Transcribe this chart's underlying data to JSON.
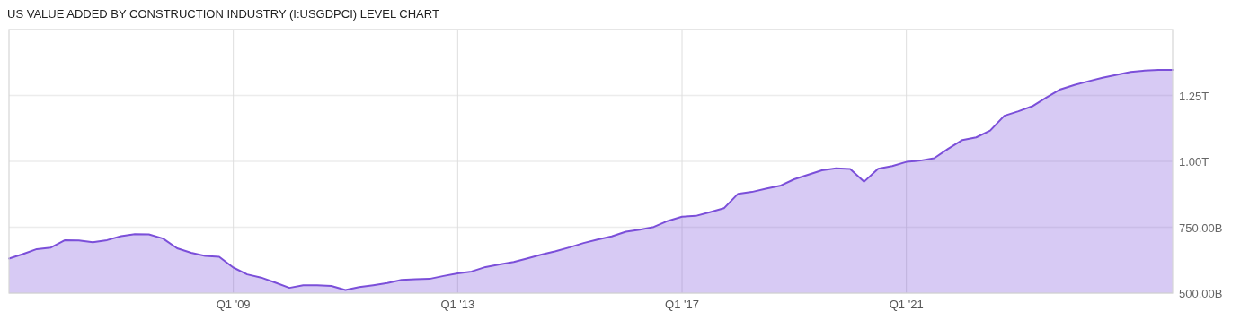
{
  "chart_data": {
    "type": "area",
    "title": "US VALUE ADDED BY CONSTRUCTION INDUSTRY (I:USGDPCI) LEVEL CHART",
    "x": [
      "2005-01",
      "2005-04",
      "2005-07",
      "2005-10",
      "2006-01",
      "2006-04",
      "2006-07",
      "2006-10",
      "2007-01",
      "2007-04",
      "2007-07",
      "2007-10",
      "2008-01",
      "2008-04",
      "2008-07",
      "2008-10",
      "2009-01",
      "2009-04",
      "2009-07",
      "2009-10",
      "2010-01",
      "2010-04",
      "2010-07",
      "2010-10",
      "2011-01",
      "2011-04",
      "2011-07",
      "2011-10",
      "2012-01",
      "2012-04",
      "2012-07",
      "2012-10",
      "2013-01",
      "2013-04",
      "2013-07",
      "2013-10",
      "2014-01",
      "2014-04",
      "2014-07",
      "2014-10",
      "2015-01",
      "2015-04",
      "2015-07",
      "2015-10",
      "2016-01",
      "2016-04",
      "2016-07",
      "2016-10",
      "2017-01",
      "2017-04",
      "2017-07",
      "2017-10",
      "2018-01",
      "2018-04",
      "2018-07",
      "2018-10",
      "2019-01",
      "2019-04",
      "2019-07",
      "2019-10",
      "2020-01",
      "2020-04",
      "2020-07",
      "2020-10",
      "2021-01",
      "2021-04",
      "2021-07",
      "2021-10",
      "2022-01",
      "2022-04",
      "2022-07",
      "2022-10",
      "2023-01",
      "2023-04",
      "2023-07",
      "2023-10",
      "2024-01",
      "2024-04",
      "2024-07",
      "2024-10",
      "2025-01",
      "2025-04",
      "2025-07",
      "2025-10"
    ],
    "series": [
      {
        "color": "#7b4fd9",
        "values": [
          631000000000.0,
          648000000000.0,
          667000000000.0,
          673000000000.0,
          701000000000.0,
          700000000000.0,
          693000000000.0,
          701000000000.0,
          716000000000.0,
          724000000000.0,
          723000000000.0,
          707000000000.0,
          670000000000.0,
          653000000000.0,
          641000000000.0,
          638000000000.0,
          597000000000.0,
          571000000000.0,
          559000000000.0,
          540000000000.0,
          520000000000.0,
          530000000000.0,
          530000000000.0,
          527000000000.0,
          512000000000.0,
          523000000000.0,
          530000000000.0,
          538000000000.0,
          550000000000.0,
          553000000000.0,
          554000000000.0,
          565000000000.0,
          575000000000.0,
          582000000000.0,
          599000000000.0,
          609000000000.0,
          618000000000.0,
          632000000000.0,
          646000000000.0,
          659000000000.0,
          674000000000.0,
          690000000000.0,
          703000000000.0,
          715000000000.0,
          733000000000.0,
          741000000000.0,
          751000000000.0,
          774000000000.0,
          790000000000.0,
          793000000000.0,
          807000000000.0,
          822000000000.0,
          877000000000.0,
          884000000000.0,
          896000000000.0,
          907000000000.0,
          932000000000.0,
          949000000000.0,
          966000000000.0,
          974000000000.0,
          971000000000.0,
          923000000000.0,
          972000000000.0,
          982000000000.0,
          998000000000.0,
          1003000000000.0,
          1012000000000.0,
          1048000000000.0,
          1081000000000.0,
          1091000000000.0,
          1117000000000.0,
          1173000000000.0,
          1190000000000.0,
          1209000000000.0,
          1242000000000.0,
          1273000000000.0,
          1290000000000.0,
          1304000000000.0,
          1317000000000.0,
          1328000000000.0,
          1339000000000.0,
          1344000000000.0,
          1347000000000.0,
          1347000000000.0
        ]
      }
    ],
    "xlim": [
      "2005-01",
      "2025-10"
    ],
    "xticks": [
      {
        "value": "2009-01",
        "label": "Q1 '09"
      },
      {
        "value": "2013-01",
        "label": "Q1 '13"
      },
      {
        "value": "2017-01",
        "label": "Q1 '17"
      },
      {
        "value": "2021-01",
        "label": "Q1 '21"
      }
    ],
    "ylim": [
      500000000000.0,
      1500000000000.0
    ],
    "yticks": [
      {
        "value": 500000000000.0,
        "label": "500.00B"
      },
      {
        "value": 750000000000.0,
        "label": "750.00B"
      },
      {
        "value": 1000000000000.0,
        "label": "1.00T"
      },
      {
        "value": 1250000000000.0,
        "label": "1.25T"
      }
    ],
    "grid": true
  }
}
